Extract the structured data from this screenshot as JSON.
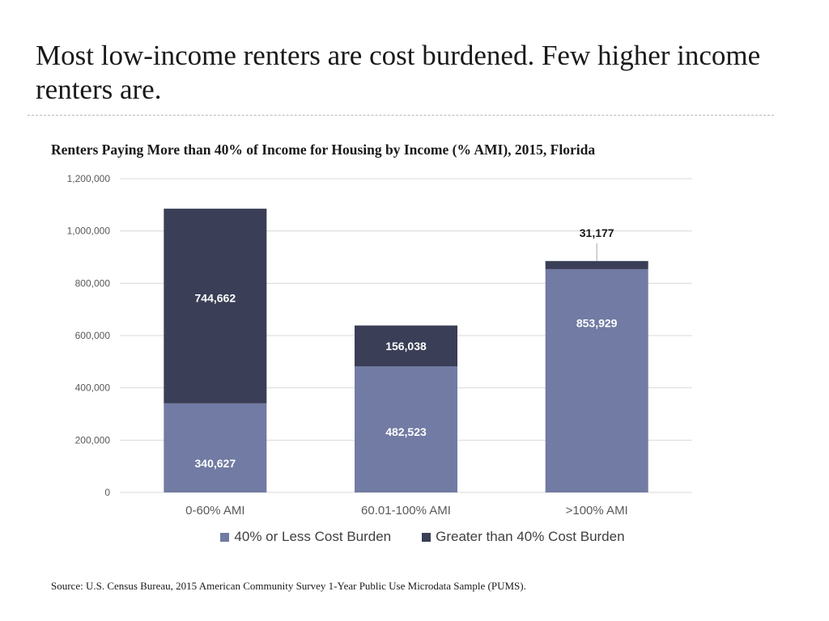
{
  "slide": {
    "title": "Most low-income renters are cost burdened. Few higher income renters are.",
    "source": "Source: U.S. Census Bureau, 2015 American Community Survey 1-Year Public Use Microdata Sample (PUMS)."
  },
  "colors": {
    "series_low": "#717ba3",
    "series_high": "#3a3e56",
    "grid": "#d9d9d9",
    "axis_text": "#595959"
  },
  "chart_data": {
    "type": "bar",
    "stacked": true,
    "title": "Renters Paying More than 40% of Income for Housing by Income (% AMI), 2015, Florida",
    "categories": [
      "0-60% AMI",
      "60.01-100% AMI",
      ">100% AMI"
    ],
    "series": [
      {
        "name": "40% or Less Cost Burden",
        "values": [
          340627,
          482523,
          853929
        ],
        "labels": [
          "340,627",
          "482,523",
          "853,929"
        ]
      },
      {
        "name": "Greater than 40% Cost Burden",
        "values": [
          744662,
          156038,
          31177
        ],
        "labels": [
          "744,662",
          "156,038",
          "31,177"
        ]
      }
    ],
    "ylim": [
      0,
      1200000
    ],
    "yticks": [
      0,
      200000,
      400000,
      600000,
      800000,
      1000000,
      1200000
    ],
    "ytick_labels": [
      "0",
      "200,000",
      "400,000",
      "600,000",
      "800,000",
      "1,000,000",
      "1,200,000"
    ],
    "grid": true,
    "legend": "bottom"
  }
}
